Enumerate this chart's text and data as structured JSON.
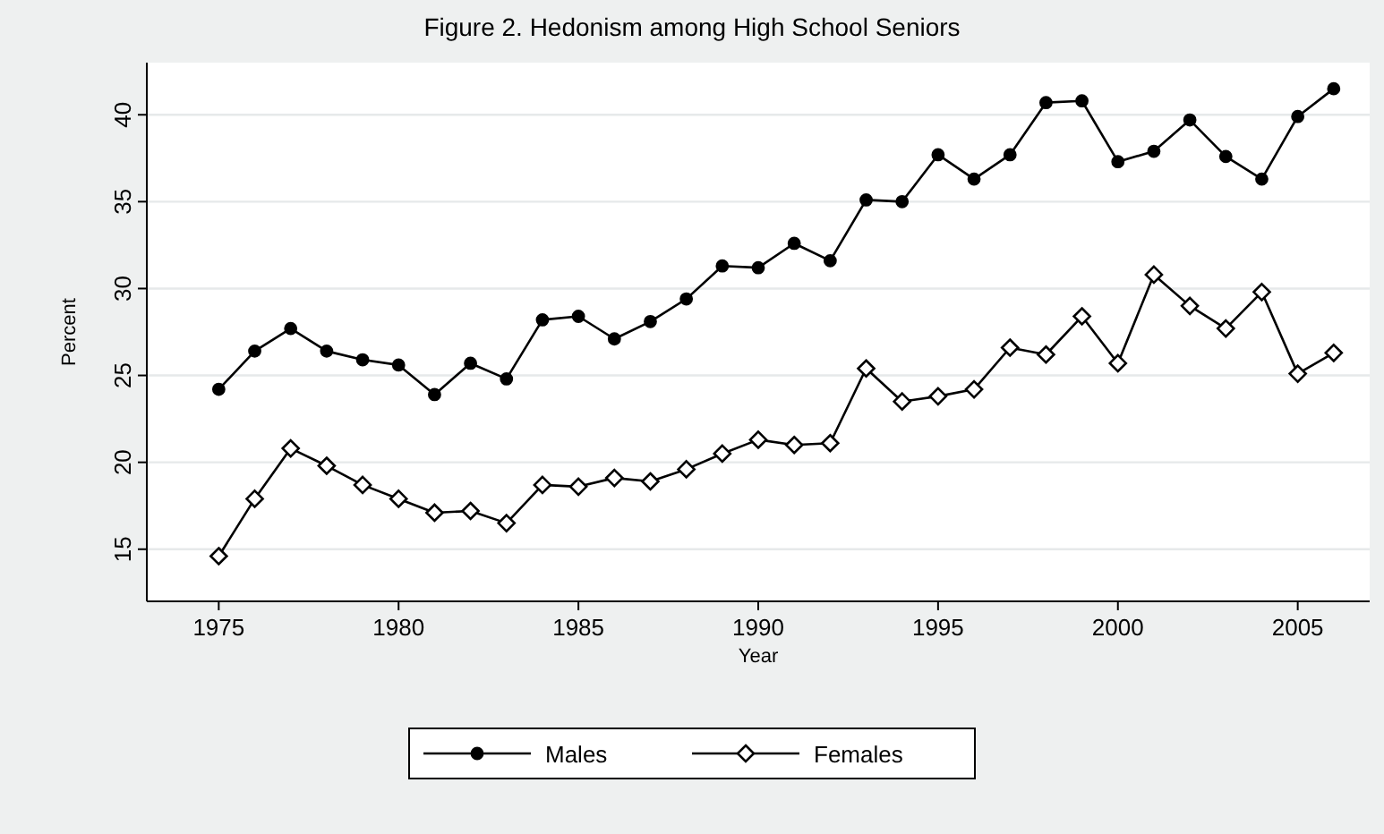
{
  "chart_data": {
    "type": "line",
    "title": "Figure 2.  Hedonism among High School Seniors",
    "xlabel": "Year",
    "ylabel": "Percent",
    "x": [
      1975,
      1976,
      1977,
      1978,
      1979,
      1980,
      1981,
      1982,
      1983,
      1984,
      1985,
      1986,
      1987,
      1988,
      1989,
      1990,
      1991,
      1992,
      1993,
      1994,
      1995,
      1996,
      1997,
      1998,
      1999,
      2000,
      2001,
      2002,
      2003,
      2004,
      2005,
      2006
    ],
    "series": [
      {
        "name": "Males",
        "color": "#000000",
        "marker": "circle",
        "values": [
          24.2,
          26.4,
          27.7,
          26.4,
          25.9,
          25.6,
          23.9,
          25.7,
          24.8,
          28.2,
          28.4,
          27.1,
          28.1,
          29.4,
          31.3,
          31.2,
          32.6,
          31.6,
          35.1,
          35.0,
          37.7,
          36.3,
          37.7,
          40.7,
          40.8,
          37.3,
          37.9,
          39.7,
          37.6,
          36.3,
          39.9,
          41.5
        ]
      },
      {
        "name": "Females",
        "color": "#000000",
        "marker": "diamond",
        "values": [
          14.6,
          17.9,
          20.8,
          19.8,
          18.7,
          17.9,
          17.1,
          17.2,
          16.5,
          18.7,
          18.6,
          19.1,
          18.9,
          19.6,
          20.5,
          21.3,
          21.0,
          21.1,
          25.4,
          23.5,
          23.8,
          24.2,
          26.6,
          26.2,
          28.4,
          25.7,
          30.8,
          29.0,
          27.7,
          29.8,
          25.1,
          26.3
        ]
      }
    ],
    "xlim": [
      1973,
      2007
    ],
    "xticks": [
      1975,
      1980,
      1985,
      1990,
      1995,
      2000,
      2005
    ],
    "ylim": [
      12,
      43
    ],
    "yticks": [
      15,
      20,
      25,
      30,
      35,
      40
    ],
    "grid": "y",
    "legend": "bottom",
    "line_style": "solid"
  }
}
